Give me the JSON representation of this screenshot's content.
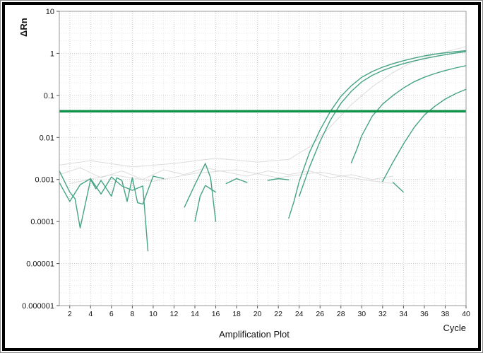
{
  "figure": {
    "title": "Amplification Plot",
    "x_axis_label": "Cycle",
    "y_axis_label": "ΔRn"
  },
  "colors": {
    "curve": "#46a383",
    "threshold": "#12914d",
    "drift": "#dcdcdc",
    "grid_major": "#c9c9c9",
    "grid_minor": "#e9e9e9",
    "plot_border": "#9a9a9a",
    "tick_text": "#111111"
  },
  "chart_data": {
    "type": "line",
    "title": "Amplification Plot",
    "xlabel": "Cycle",
    "ylabel": "ΔRn",
    "y_scale": "log",
    "grid": true,
    "xlim": [
      1,
      40
    ],
    "ylim": [
      1e-06,
      10
    ],
    "x_ticks": [
      2,
      4,
      6,
      8,
      10,
      12,
      14,
      16,
      18,
      20,
      22,
      24,
      26,
      28,
      30,
      32,
      34,
      36,
      38,
      40
    ],
    "y_tick_values": [
      10,
      1,
      0.1,
      0.01,
      0.001,
      0.0001,
      1e-05,
      1e-06
    ],
    "y_tick_labels": [
      "10",
      "1",
      "0.1",
      "0.01",
      "0.001",
      "0.0001",
      "0.00001",
      "0.000001"
    ],
    "threshold": {
      "value": 0.042,
      "color": "#12914d",
      "label": "threshold-line"
    },
    "series": [
      {
        "name": "amplification-curve-1",
        "role": "amplification",
        "color": "#46a383",
        "points": [
          [
            23,
            0.00012
          ],
          [
            23.5,
            0.0003
          ],
          [
            24,
            0.0009
          ],
          [
            25,
            0.0045
          ],
          [
            26,
            0.015
          ],
          [
            27,
            0.042
          ],
          [
            28,
            0.095
          ],
          [
            29,
            0.17
          ],
          [
            30,
            0.27
          ],
          [
            31,
            0.37
          ],
          [
            32,
            0.47
          ],
          [
            33,
            0.57
          ],
          [
            34,
            0.67
          ],
          [
            35,
            0.77
          ],
          [
            36,
            0.87
          ],
          [
            37,
            0.96
          ],
          [
            38,
            1.03
          ],
          [
            39,
            1.1
          ],
          [
            40,
            1.16
          ]
        ]
      },
      {
        "name": "amplification-curve-2",
        "role": "amplification",
        "color": "#46a383",
        "points": [
          [
            24,
            0.0004
          ],
          [
            25,
            0.002
          ],
          [
            26,
            0.008
          ],
          [
            27,
            0.026
          ],
          [
            28,
            0.065
          ],
          [
            29,
            0.125
          ],
          [
            30,
            0.21
          ],
          [
            31,
            0.3
          ],
          [
            32,
            0.39
          ],
          [
            33,
            0.48
          ],
          [
            34,
            0.57
          ],
          [
            35,
            0.66
          ],
          [
            36,
            0.75
          ],
          [
            37,
            0.84
          ],
          [
            38,
            0.93
          ],
          [
            39,
            1.02
          ],
          [
            40,
            1.1
          ]
        ]
      },
      {
        "name": "amplification-curve-3",
        "role": "amplification",
        "color": "#46a383",
        "points": [
          [
            29,
            0.0025
          ],
          [
            29.5,
            0.005
          ],
          [
            30,
            0.011
          ],
          [
            31,
            0.032
          ],
          [
            32,
            0.062
          ],
          [
            33,
            0.1
          ],
          [
            34,
            0.15
          ],
          [
            35,
            0.21
          ],
          [
            36,
            0.27
          ],
          [
            37,
            0.33
          ],
          [
            38,
            0.39
          ],
          [
            39,
            0.45
          ],
          [
            40,
            0.51
          ]
        ]
      },
      {
        "name": "amplification-curve-4",
        "role": "amplification",
        "color": "#46a383",
        "points": [
          [
            32,
            0.0009
          ],
          [
            33,
            0.0026
          ],
          [
            34,
            0.007
          ],
          [
            35,
            0.017
          ],
          [
            36,
            0.034
          ],
          [
            37,
            0.055
          ],
          [
            38,
            0.082
          ],
          [
            39,
            0.11
          ],
          [
            40,
            0.14
          ]
        ]
      },
      {
        "name": "baseline-noise-1",
        "role": "noise",
        "color": "#46a383",
        "points": [
          [
            1,
            0.0016
          ],
          [
            2,
            0.0005
          ],
          [
            2.5,
            0.00035
          ],
          [
            3,
            7e-05
          ],
          [
            4,
            0.001
          ],
          [
            4.5,
            0.0006
          ],
          [
            5,
            0.00095
          ],
          [
            6,
            0.0004
          ],
          [
            6.5,
            0.0011
          ],
          [
            7,
            0.00095
          ],
          [
            7.5,
            0.0003
          ],
          [
            8,
            0.0011
          ],
          [
            8.5,
            0.00028
          ],
          [
            9,
            0.00026
          ],
          [
            10,
            0.0012
          ],
          [
            11,
            0.00105
          ]
        ]
      },
      {
        "name": "baseline-noise-2",
        "role": "noise",
        "color": "#46a383",
        "points": [
          [
            1,
            0.00085
          ],
          [
            2,
            0.0003
          ],
          [
            3,
            0.00075
          ],
          [
            4,
            0.00105
          ],
          [
            5,
            0.00045
          ],
          [
            6,
            0.00115
          ],
          [
            7,
            0.0007
          ],
          [
            8,
            0.00055
          ],
          [
            9,
            0.0007
          ],
          [
            9.5,
            2e-05
          ]
        ]
      },
      {
        "name": "baseline-noise-3",
        "role": "noise",
        "color": "#46a383",
        "points": [
          [
            13,
            0.00022
          ],
          [
            14,
            0.00075
          ],
          [
            15,
            0.0024
          ],
          [
            15.5,
            0.0011
          ],
          [
            16,
            0.0001
          ]
        ]
      },
      {
        "name": "baseline-noise-4",
        "role": "noise",
        "color": "#46a383",
        "points": [
          [
            14,
            0.0001
          ],
          [
            14.5,
            0.0004
          ],
          [
            15,
            0.00072
          ],
          [
            16,
            0.0005
          ]
        ]
      },
      {
        "name": "baseline-noise-5",
        "role": "noise",
        "color": "#46a383",
        "points": [
          [
            17,
            0.0008
          ],
          [
            18,
            0.00105
          ],
          [
            19,
            0.00085
          ]
        ]
      },
      {
        "name": "baseline-noise-6",
        "role": "noise",
        "color": "#46a383",
        "points": [
          [
            21,
            0.00095
          ],
          [
            22,
            0.00105
          ],
          [
            23,
            0.00098
          ]
        ]
      },
      {
        "name": "baseline-noise-7",
        "role": "noise",
        "color": "#46a383",
        "points": [
          [
            33,
            0.00085
          ],
          [
            34,
            0.0005
          ]
        ]
      },
      {
        "name": "drift-trace-1",
        "role": "drift",
        "color": "#dcdcdc",
        "points": [
          [
            1,
            0.0022
          ],
          [
            4,
            0.0028
          ],
          [
            8,
            0.002
          ],
          [
            12,
            0.0024
          ],
          [
            16,
            0.0032
          ],
          [
            20,
            0.0026
          ],
          [
            23,
            0.003
          ],
          [
            25,
            0.006
          ],
          [
            27,
            0.018
          ],
          [
            29,
            0.06
          ],
          [
            31,
            0.16
          ],
          [
            33,
            0.35
          ],
          [
            35,
            0.65
          ],
          [
            37,
            0.95
          ],
          [
            39,
            1.25
          ],
          [
            40,
            1.45
          ]
        ]
      },
      {
        "name": "drift-trace-2",
        "role": "drift",
        "color": "#dcdcdc",
        "points": [
          [
            1,
            0.0013
          ],
          [
            3,
            0.0019
          ],
          [
            5,
            0.0011
          ],
          [
            7,
            0.0016
          ],
          [
            9,
            0.001
          ],
          [
            11,
            0.0017
          ],
          [
            13,
            0.0013
          ],
          [
            15,
            0.0019
          ],
          [
            17,
            0.0015
          ],
          [
            19,
            0.0012
          ],
          [
            21,
            0.0016
          ],
          [
            23,
            0.0013
          ],
          [
            25,
            0.0016
          ],
          [
            27,
            0.0011
          ],
          [
            29,
            0.0013
          ],
          [
            31,
            0.001
          ],
          [
            33,
            0.0012
          ]
        ]
      },
      {
        "name": "drift-trace-3",
        "role": "drift",
        "color": "#dcdcdc",
        "points": [
          [
            2,
            0.0008
          ],
          [
            6,
            0.0013
          ],
          [
            10,
            0.0009
          ],
          [
            14,
            0.0014
          ],
          [
            18,
            0.0017
          ],
          [
            22,
            0.0011
          ],
          [
            26,
            0.0015
          ],
          [
            30,
            0.001
          ],
          [
            33,
            0.0008
          ]
        ]
      }
    ]
  }
}
